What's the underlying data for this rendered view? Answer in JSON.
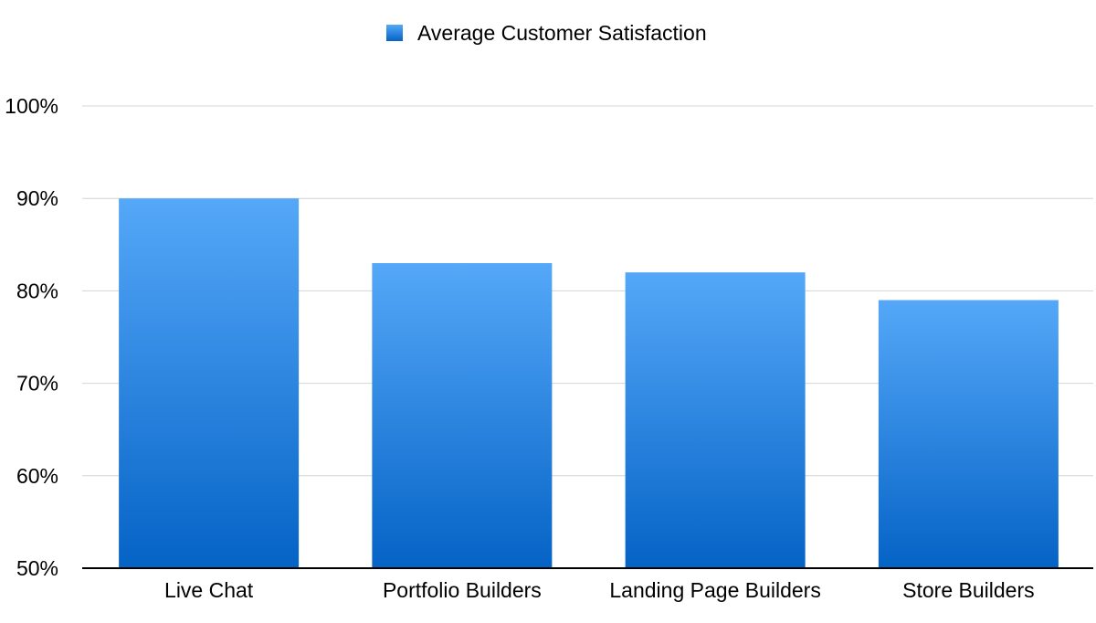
{
  "chart_data": {
    "type": "bar",
    "categories": [
      "Live Chat",
      "Portfolio Builders",
      "Landing Page Builders",
      "Store Builders"
    ],
    "series": [
      {
        "name": "Average Customer Satisfaction",
        "values": [
          90,
          83,
          82,
          79
        ]
      }
    ],
    "ylim": [
      50,
      100
    ],
    "yticks": [
      50,
      60,
      70,
      80,
      90,
      100
    ],
    "ytick_labels": [
      "50%",
      "60%",
      "70%",
      "80%",
      "90%",
      "100%"
    ],
    "grid": true,
    "legend_position": "top-center",
    "colors": {
      "bar_top": "#55a8f8",
      "bar_bottom": "#0563c6",
      "gridline": "#d4d4d4",
      "axis": "#000000"
    }
  }
}
